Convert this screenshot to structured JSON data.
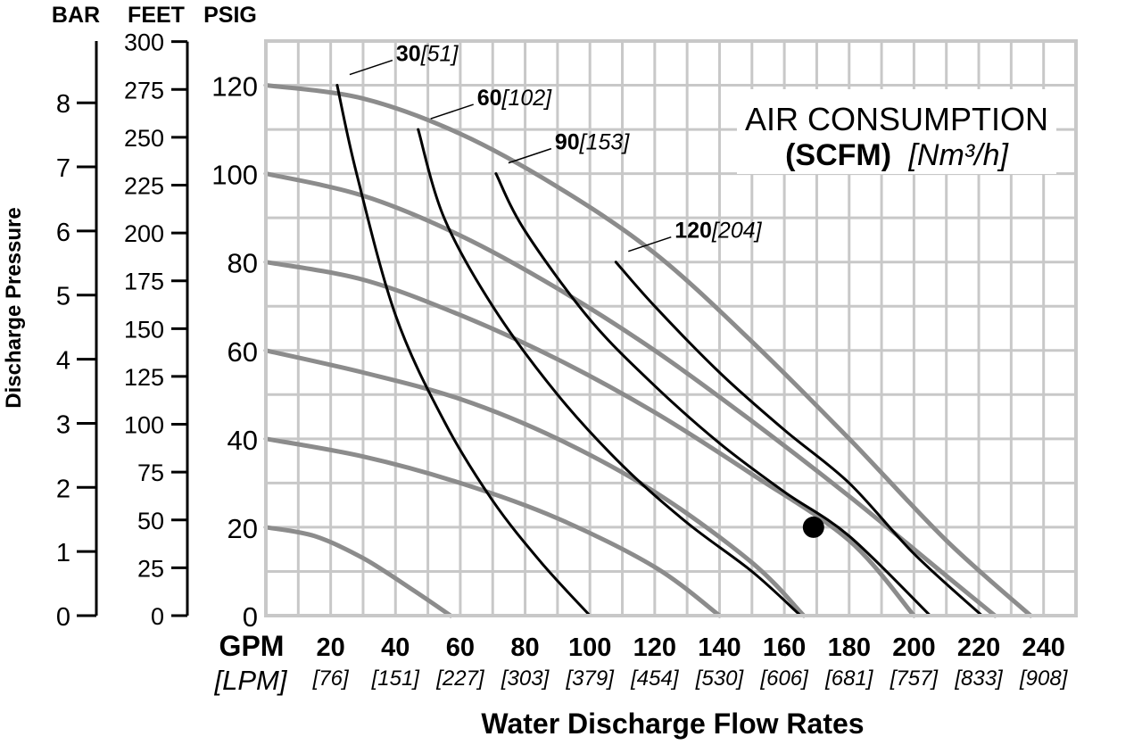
{
  "chart_data": {
    "type": "line",
    "title_line1": "AIR CONSUMPTION",
    "title_line2_bold": "(SCFM)",
    "title_line2_italic": "[Nm³/h]",
    "xlabel": "Water Discharge Flow Rates",
    "ylabel": "Discharge Pressure",
    "x_unit": "GPM",
    "x_unit_alt": "[LPM]",
    "x_ticks": [
      20,
      40,
      60,
      80,
      100,
      120,
      140,
      160,
      180,
      200,
      220,
      240
    ],
    "x_ticks_alt": [
      "[76]",
      "[151]",
      "[227]",
      "[303]",
      "[379]",
      "[454]",
      "[530]",
      "[606]",
      "[681]",
      "[757]",
      "[833]",
      "[908]"
    ],
    "xlim": [
      0,
      250
    ],
    "ylim": [
      0,
      130
    ],
    "y_axes": [
      {
        "unit": "PSIG",
        "ticks": [
          "0",
          "20",
          "40",
          "60",
          "80",
          "100",
          "120"
        ],
        "values": [
          0,
          20,
          40,
          60,
          80,
          100,
          120
        ]
      },
      {
        "unit": "FEET",
        "ticks": [
          "0",
          "25",
          "50",
          "75",
          "100",
          "125",
          "150",
          "175",
          "200",
          "225",
          "250",
          "275",
          "300"
        ],
        "values": [
          0,
          25,
          50,
          75,
          100,
          125,
          150,
          175,
          200,
          225,
          250,
          275,
          300
        ]
      },
      {
        "unit": "BAR",
        "ticks": [
          "0",
          "1",
          "2",
          "3",
          "4",
          "5",
          "6",
          "7",
          "8"
        ],
        "values": [
          0,
          1,
          2,
          3,
          4,
          5,
          6,
          7,
          8
        ]
      }
    ],
    "grid": true,
    "series": [
      {
        "role": "performance",
        "color": "#8c8c8c",
        "x": [
          0,
          30,
          60,
          90,
          120,
          150,
          180,
          210,
          236
        ],
        "y": [
          120,
          117,
          109,
          97,
          82,
          62,
          40,
          17,
          0
        ]
      },
      {
        "role": "performance",
        "color": "#8c8c8c",
        "x": [
          0,
          30,
          60,
          90,
          120,
          150,
          180,
          210,
          225
        ],
        "y": [
          100,
          95,
          86,
          74,
          60,
          44,
          27,
          9,
          0
        ]
      },
      {
        "role": "performance",
        "color": "#8c8c8c",
        "x": [
          0,
          30,
          60,
          90,
          120,
          150,
          180,
          200
        ],
        "y": [
          80,
          76,
          68,
          58,
          46,
          32,
          17,
          0
        ]
      },
      {
        "role": "performance",
        "color": "#8c8c8c",
        "x": [
          0,
          30,
          60,
          90,
          120,
          150,
          166
        ],
        "y": [
          60,
          55,
          49,
          40,
          28,
          12,
          0
        ]
      },
      {
        "role": "performance",
        "color": "#8c8c8c",
        "x": [
          0,
          30,
          60,
          90,
          120,
          140
        ],
        "y": [
          40,
          36,
          30,
          22,
          11,
          0
        ]
      },
      {
        "role": "performance",
        "color": "#8c8c8c",
        "x": [
          0,
          15,
          30,
          45,
          57
        ],
        "y": [
          20,
          18,
          13,
          6,
          0
        ]
      },
      {
        "name": "30",
        "alt": "[51]",
        "role": "air",
        "color": "#000000",
        "x": [
          22,
          28,
          40,
          55,
          70,
          85,
          100
        ],
        "y": [
          120,
          100,
          68,
          44,
          26,
          12,
          0
        ]
      },
      {
        "name": "60",
        "alt": "[102]",
        "role": "air",
        "color": "#000000",
        "x": [
          47,
          55,
          70,
          90,
          110,
          130,
          150,
          165
        ],
        "y": [
          110,
          90,
          70,
          50,
          34,
          21,
          10,
          0
        ]
      },
      {
        "name": "90",
        "alt": "[153]",
        "role": "air",
        "color": "#000000",
        "x": [
          71,
          80,
          100,
          120,
          140,
          160,
          180,
          205
        ],
        "y": [
          100,
          87,
          67,
          52,
          39,
          28,
          18,
          0
        ]
      },
      {
        "name": "120",
        "alt": "[204]",
        "role": "air",
        "color": "#000000",
        "x": [
          108,
          120,
          140,
          160,
          180,
          200,
          221
        ],
        "y": [
          80,
          70,
          55,
          42,
          30,
          14,
          0
        ]
      }
    ],
    "marker": {
      "x": 169,
      "y": 20
    }
  }
}
